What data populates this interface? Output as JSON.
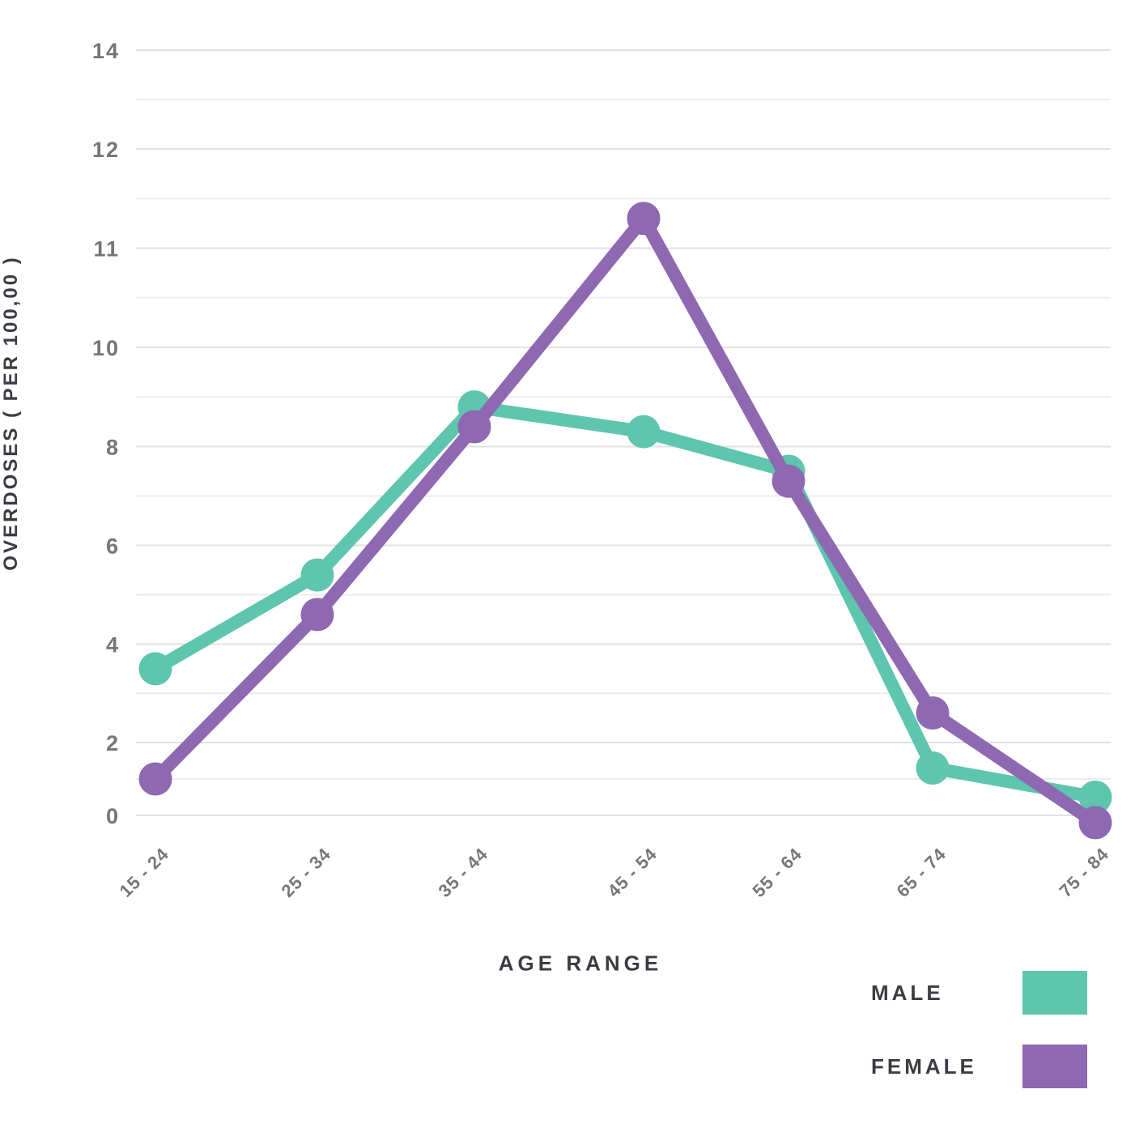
{
  "chart_data": {
    "type": "line",
    "title": "",
    "xlabel": "AGE RANGE",
    "ylabel": "OVERDOSES ( PER 100,00 )",
    "categories": [
      "15 - 24",
      "25 - 34",
      "35 - 44",
      "45 - 54",
      "55 - 64",
      "65 - 74",
      "75 - 84"
    ],
    "series": [
      {
        "name": "MALE",
        "color": "#5EC5AE",
        "values": [
          3.5,
          5.4,
          8.8,
          8.3,
          7.5,
          1.3,
          0.5
        ]
      },
      {
        "name": "FEMALE",
        "color": "#8F68B2",
        "values": [
          1.0,
          4.6,
          8.4,
          11.3,
          7.3,
          2.6,
          -0.2
        ]
      }
    ],
    "y_ticks": [
      0,
      2,
      4,
      6,
      8,
      10,
      11,
      12,
      14
    ],
    "ylim": [
      -0.5,
      14
    ],
    "grid": "horizontal, major lines at labeled ticks with one minor line between each pair",
    "legend_position": "bottom-right",
    "marker": "filled-circle",
    "colors": {
      "background": "#ffffff",
      "tick_label": "#767676",
      "axis_title": "#3b3b45",
      "grid_major": "#e2e2e2",
      "grid_minor": "#ededed"
    }
  }
}
